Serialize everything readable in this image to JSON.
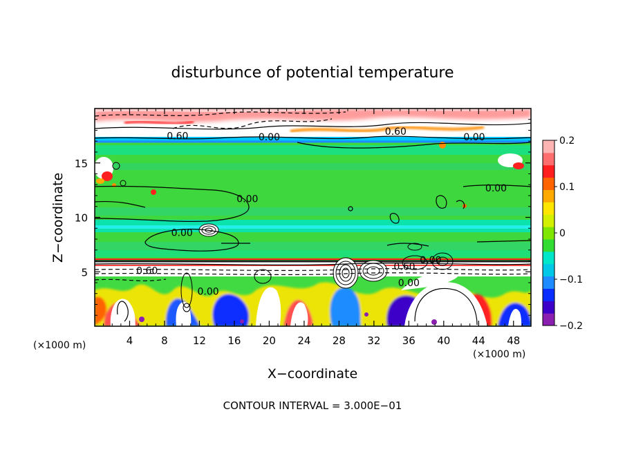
{
  "chart_data": {
    "type": "heatmap",
    "title": "disturbunce of potential temperature",
    "xlabel": "X−coordinate",
    "ylabel": "Z−coordinate",
    "x_unit_label": "(×1000 m)",
    "y_unit_label": "(×1000 m)",
    "xlim": [
      0,
      50
    ],
    "ylim": [
      0,
      20
    ],
    "x_ticks": [
      4,
      8,
      12,
      16,
      20,
      24,
      28,
      32,
      36,
      40,
      44,
      48
    ],
    "x_tick_labels": [
      "4",
      "8",
      "12",
      "16",
      "20",
      "24",
      "28",
      "32",
      "36",
      "40",
      "44",
      "48"
    ],
    "y_ticks": [
      5,
      10,
      15
    ],
    "y_tick_labels": [
      "5",
      "10",
      "15"
    ],
    "colorbar": {
      "range": [
        -0.2,
        0.2
      ],
      "ticks": [
        0.2,
        0.1,
        0,
        -0.1,
        -0.2
      ],
      "tick_labels": [
        "0.2",
        "0.1",
        "0",
        "−0.1",
        "−0.2"
      ],
      "colors": [
        "#8b1fb0",
        "#3c00c8",
        "#0a2dff",
        "#1e8cff",
        "#00c8e6",
        "#00e6c8",
        "#32dc32",
        "#7ee600",
        "#d2f000",
        "#ffe600",
        "#ffaa00",
        "#ff6400",
        "#ff1e1e",
        "#ff6e6e",
        "#ffb4b4"
      ]
    },
    "contour_labels": [
      {
        "text": "0.60",
        "x": 9.5,
        "z": 17.5
      },
      {
        "text": "0.00",
        "x": 20.0,
        "z": 17.4
      },
      {
        "text": "0.60",
        "x": 34.5,
        "z": 17.9
      },
      {
        "text": "0.00",
        "x": 43.5,
        "z": 17.4
      },
      {
        "text": "0.00",
        "x": 46.0,
        "z": 12.7
      },
      {
        "text": "0.00",
        "x": 17.5,
        "z": 11.7
      },
      {
        "text": "0.00",
        "x": 10.0,
        "z": 8.6
      },
      {
        "text": "0.00",
        "x": 38.5,
        "z": 6.1
      },
      {
        "text": "0.60",
        "x": 35.5,
        "z": 5.5
      },
      {
        "text": "0.60",
        "x": 6.0,
        "z": 5.1
      },
      {
        "text": "0.00",
        "x": 13.0,
        "z": 3.2
      },
      {
        "text": "0.00",
        "x": 36.0,
        "z": 4.0
      }
    ],
    "contour_interval_text": "CONTOUR INTERVAL = 3.000E−01",
    "grid": false,
    "legend": "colorbar-right"
  }
}
